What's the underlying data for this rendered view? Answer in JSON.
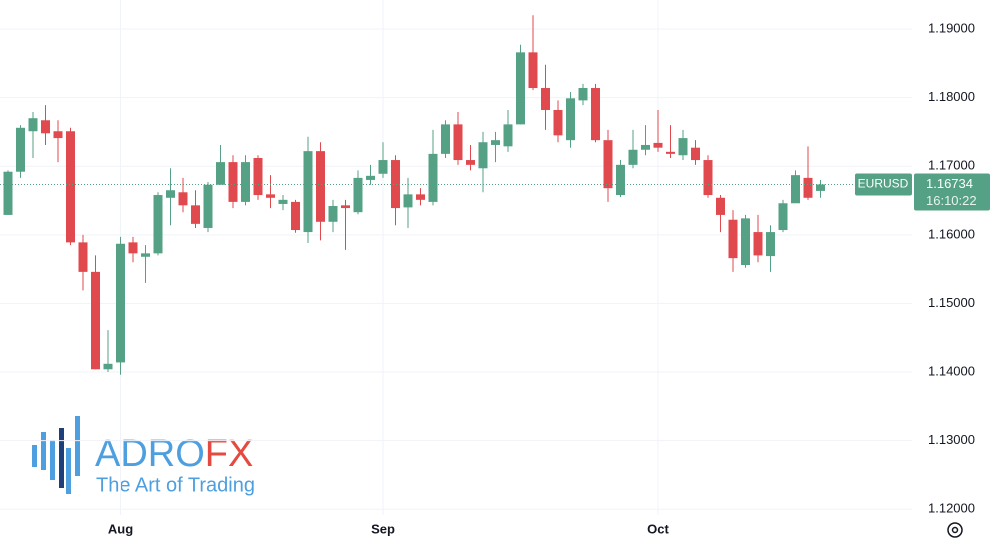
{
  "chart_data": {
    "type": "candlestick",
    "categories": [
      null,
      null,
      null,
      null,
      null,
      null,
      null,
      null,
      null,
      "Aug",
      null,
      null,
      null,
      null,
      null,
      null,
      null,
      null,
      null,
      null,
      null,
      null,
      null,
      null,
      null,
      null,
      null,
      null,
      null,
      null,
      "Sep",
      null,
      null,
      null,
      null,
      null,
      null,
      null,
      null,
      null,
      null,
      null,
      null,
      null,
      null,
      null,
      null,
      null,
      null,
      null,
      null,
      null,
      "Oct",
      null,
      null,
      null,
      null,
      null,
      null,
      null,
      null,
      null,
      null,
      null,
      null,
      null
    ],
    "series": [
      {
        "name": "EURUSD",
        "open": [
          1.1629,
          1.1692,
          1.1751,
          1.1767,
          1.1751,
          1.1751,
          1.1589,
          1.1546,
          1.1404,
          1.1414,
          1.1589,
          1.1568,
          1.1573,
          1.1654,
          1.1662,
          1.1643,
          1.161,
          1.1673,
          1.1706,
          1.1648,
          1.1712,
          1.1659,
          1.1645,
          1.1648,
          1.1604,
          1.1722,
          1.1619,
          1.1643,
          1.1633,
          1.168,
          1.1689,
          1.1709,
          1.164,
          1.1659,
          1.1648,
          1.1718,
          1.1761,
          1.1709,
          1.1697,
          1.1731,
          1.1729,
          1.1761,
          1.1866,
          1.1814,
          1.1782,
          1.1738,
          1.1796,
          1.1814,
          1.1738,
          1.1658,
          1.1702,
          1.1724,
          1.1734,
          1.1721,
          1.1716,
          1.1727,
          1.1709,
          1.1654,
          1.1622,
          1.1556,
          1.1604,
          1.1569,
          1.1607,
          1.1646,
          1.1683,
          1.1664
        ],
        "high": [
          1.1694,
          1.176,
          1.1779,
          1.1789,
          1.1767,
          1.1756,
          1.16,
          1.157,
          1.1461,
          1.1597,
          1.1597,
          1.1585,
          1.1662,
          1.1697,
          1.1683,
          1.1665,
          1.1677,
          1.1731,
          1.1716,
          1.1716,
          1.1716,
          1.1687,
          1.1658,
          1.1651,
          1.1743,
          1.1735,
          1.1651,
          1.1651,
          1.1694,
          1.1702,
          1.1735,
          1.1716,
          1.1683,
          1.1668,
          1.1753,
          1.1767,
          1.1779,
          1.1731,
          1.175,
          1.175,
          1.1782,
          1.1877,
          1.192,
          1.1848,
          1.1796,
          1.1808,
          1.182,
          1.182,
          1.1753,
          1.1709,
          1.1753,
          1.176,
          1.1782,
          1.176,
          1.1753,
          1.1738,
          1.1716,
          1.1658,
          1.1636,
          1.1629,
          1.1629,
          1.1614,
          1.1651,
          1.1694,
          1.1729,
          1.168
        ],
        "low": [
          1.1629,
          1.1683,
          1.1712,
          1.1731,
          1.1706,
          1.1585,
          1.1519,
          1.1404,
          1.14,
          1.1396,
          1.156,
          1.153,
          1.157,
          1.1614,
          1.1633,
          1.161,
          1.1604,
          1.1673,
          1.1639,
          1.1643,
          1.1651,
          1.1639,
          1.1636,
          1.1603,
          1.1588,
          1.1592,
          1.1604,
          1.1578,
          1.163,
          1.1673,
          1.1683,
          1.1614,
          1.161,
          1.1643,
          1.1643,
          1.1712,
          1.1702,
          1.1694,
          1.1662,
          1.1706,
          1.1721,
          1.1761,
          1.1811,
          1.1753,
          1.1735,
          1.1727,
          1.1789,
          1.1735,
          1.1648,
          1.1655,
          1.1697,
          1.1716,
          1.1721,
          1.1712,
          1.1709,
          1.1702,
          1.1654,
          1.1604,
          1.1546,
          1.1552,
          1.156,
          1.1546,
          1.1604,
          1.1651,
          1.1651,
          1.1654
        ],
        "close": [
          1.1692,
          1.1756,
          1.177,
          1.1748,
          1.1741,
          1.1589,
          1.1546,
          1.1404,
          1.1412,
          1.1587,
          1.1573,
          1.1573,
          1.1658,
          1.1665,
          1.1643,
          1.1616,
          1.1673,
          1.1706,
          1.1648,
          1.1706,
          1.1658,
          1.1654,
          1.1651,
          1.1607,
          1.1722,
          1.1619,
          1.1642,
          1.1639,
          1.1683,
          1.1686,
          1.1709,
          1.1639,
          1.1659,
          1.1651,
          1.1718,
          1.1761,
          1.1709,
          1.1702,
          1.1735,
          1.1738,
          1.1761,
          1.1866,
          1.1814,
          1.1782,
          1.1745,
          1.1799,
          1.1814,
          1.1738,
          1.1668,
          1.1702,
          1.1724,
          1.1731,
          1.1727,
          1.1718,
          1.1741,
          1.1709,
          1.1658,
          1.1629,
          1.1566,
          1.1624,
          1.157,
          1.1604,
          1.1646,
          1.1687,
          1.1654,
          1.16734
        ]
      }
    ],
    "up_color": "#55a186",
    "down_color": "#e04a4f",
    "last_price": 1.16734,
    "countdown": "16:10:22",
    "ylim": [
      1.11916,
      1.19423
    ],
    "yticks": [
      {
        "value": 1.12,
        "label": "1.12000"
      },
      {
        "value": 1.13,
        "label": "1.13000"
      },
      {
        "value": 1.14,
        "label": "1.14000"
      },
      {
        "value": 1.15,
        "label": "1.15000"
      },
      {
        "value": 1.16,
        "label": "1.16000"
      },
      {
        "value": 1.17,
        "label": "1.17000"
      },
      {
        "value": 1.18,
        "label": "1.18000"
      },
      {
        "value": 1.19,
        "label": "1.19000"
      }
    ],
    "grid": true
  },
  "watermark": {
    "brand": "ADRO",
    "brand_accent": "FX",
    "tagline": "The Art of Trading"
  }
}
